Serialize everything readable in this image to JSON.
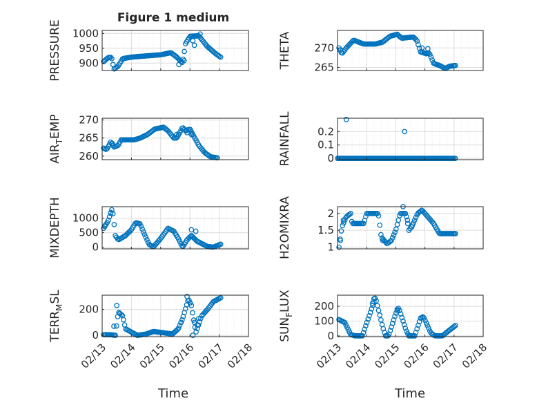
{
  "figure": {
    "title": "Figure 1 medium",
    "xlabel": "Time"
  },
  "x_ticks": [
    "02/13",
    "02/14",
    "02/15",
    "02/16",
    "02/17",
    "02/18"
  ],
  "colors": {
    "marker": "#0072BD",
    "axis": "#262626",
    "grid": "#dcdcdc",
    "minor_grid": "#ececec"
  },
  "chart_data": [
    {
      "type": "scatter",
      "id": "pressure",
      "ylabel": "PRESSURE",
      "ylabel_sub": "",
      "ylim": [
        875,
        1010
      ],
      "yticks": [
        900,
        950,
        1000
      ],
      "ytick_labels": [
        "900",
        "950",
        "1000"
      ],
      "x_range_days": [
        0,
        5
      ],
      "anchors": [
        [
          0.05,
          905
        ],
        [
          0.2,
          918
        ],
        [
          0.32,
          920
        ],
        [
          0.4,
          880
        ],
        [
          0.55,
          890
        ],
        [
          0.7,
          915
        ],
        [
          1.0,
          920
        ],
        [
          1.6,
          925
        ],
        [
          2.0,
          928
        ],
        [
          2.35,
          935
        ],
        [
          2.55,
          920
        ],
        [
          2.75,
          900
        ],
        [
          2.85,
          965
        ],
        [
          3.0,
          990
        ],
        [
          3.3,
          992
        ],
        [
          3.6,
          955
        ],
        [
          3.9,
          930
        ],
        [
          4.05,
          920
        ]
      ],
      "extra": [
        [
          2.62,
          895
        ],
        [
          2.7,
          905
        ],
        [
          2.8,
          908
        ],
        [
          3.1,
          975
        ],
        [
          3.15,
          960
        ],
        [
          3.35,
          998
        ]
      ]
    },
    {
      "type": "scatter",
      "id": "theta",
      "ylabel": "THETA",
      "ylabel_sub": "",
      "ylim": [
        264.2,
        274.5
      ],
      "yticks": [
        265,
        270
      ],
      "ytick_labels": [
        "265",
        "270"
      ],
      "x_range_days": [
        0,
        5
      ],
      "anchors": [
        [
          0.05,
          270
        ],
        [
          0.15,
          268.5
        ],
        [
          0.3,
          270
        ],
        [
          0.55,
          272
        ],
        [
          0.9,
          271
        ],
        [
          1.3,
          271
        ],
        [
          1.55,
          271.5
        ],
        [
          1.8,
          273
        ],
        [
          2.05,
          273.5
        ],
        [
          2.2,
          272.5
        ],
        [
          2.6,
          272.8
        ],
        [
          2.72,
          272
        ],
        [
          2.85,
          269
        ],
        [
          3.05,
          268.5
        ],
        [
          3.15,
          268.7
        ],
        [
          3.3,
          266
        ],
        [
          3.5,
          265.5
        ],
        [
          3.7,
          264.7
        ],
        [
          3.85,
          265.3
        ],
        [
          4.05,
          265.5
        ]
      ],
      "extra": [
        [
          0.1,
          269.5
        ],
        [
          2.9,
          270
        ],
        [
          3.1,
          269.8
        ]
      ]
    },
    {
      "type": "scatter",
      "id": "air_temp",
      "ylabel": "AIR",
      "ylabel_sub": "T",
      "ylabel_tail": "EMP",
      "ylim": [
        259,
        270.5
      ],
      "yticks": [
        260,
        265,
        270
      ],
      "ytick_labels": [
        "260",
        "265",
        "270"
      ],
      "x_range_days": [
        0,
        5
      ],
      "anchors": [
        [
          0.05,
          262.2
        ],
        [
          0.15,
          261.8
        ],
        [
          0.3,
          264
        ],
        [
          0.4,
          262.5
        ],
        [
          0.55,
          263
        ],
        [
          0.65,
          264.5
        ],
        [
          1.1,
          264.5
        ],
        [
          1.3,
          265
        ],
        [
          1.55,
          266
        ],
        [
          1.8,
          267.5
        ],
        [
          2.1,
          268
        ],
        [
          2.25,
          267
        ],
        [
          2.45,
          265
        ],
        [
          2.55,
          265
        ],
        [
          2.75,
          268
        ],
        [
          2.85,
          267
        ],
        [
          3.0,
          267.5
        ],
        [
          3.3,
          263
        ],
        [
          3.5,
          261
        ],
        [
          3.7,
          259.8
        ],
        [
          3.95,
          259.5
        ]
      ],
      "extra": [
        [
          0.35,
          263.5
        ],
        [
          2.9,
          266.5
        ],
        [
          2.55,
          266
        ],
        [
          3.05,
          266
        ]
      ]
    },
    {
      "type": "scatter",
      "id": "rainfall",
      "ylabel": "RAINFALL",
      "ylabel_sub": "",
      "ylim": [
        -0.01,
        0.3
      ],
      "yticks": [
        0,
        0.1,
        0.2
      ],
      "ytick_labels": [
        "0",
        "0.1",
        "0.2"
      ],
      "x_range_days": [
        0,
        5
      ],
      "anchors": [
        [
          0,
          0
        ],
        [
          4.05,
          0
        ]
      ],
      "extra": [
        [
          0.3,
          0.29
        ],
        [
          2.3,
          0.2
        ]
      ]
    },
    {
      "type": "scatter",
      "id": "mixdepth",
      "ylabel": "MIXDEPTH",
      "ylabel_sub": "",
      "ylim": [
        -60,
        1400
      ],
      "yticks": [
        0,
        500,
        1000
      ],
      "ytick_labels": [
        "0",
        "500",
        "1000"
      ],
      "x_range_days": [
        0,
        5
      ],
      "anchors": [
        [
          0.05,
          650
        ],
        [
          0.2,
          900
        ],
        [
          0.35,
          1350
        ],
        [
          0.45,
          400
        ],
        [
          0.55,
          250
        ],
        [
          0.8,
          400
        ],
        [
          1.0,
          600
        ],
        [
          1.15,
          850
        ],
        [
          1.3,
          800
        ],
        [
          1.4,
          550
        ],
        [
          1.6,
          100
        ],
        [
          1.75,
          0
        ],
        [
          2.0,
          300
        ],
        [
          2.25,
          650
        ],
        [
          2.45,
          550
        ],
        [
          2.6,
          300
        ],
        [
          2.75,
          0
        ],
        [
          2.9,
          250
        ],
        [
          3.05,
          400
        ],
        [
          3.25,
          200
        ],
        [
          3.6,
          20
        ],
        [
          3.8,
          0
        ],
        [
          4.05,
          100
        ]
      ],
      "extra": [
        [
          0.1,
          750
        ],
        [
          0.3,
          1200
        ],
        [
          3.05,
          600
        ],
        [
          3.2,
          550
        ]
      ]
    },
    {
      "type": "scatter",
      "id": "h2omixra",
      "ylabel": "H2OMIXRA",
      "ylabel_sub": "",
      "ylim": [
        0.95,
        2.2
      ],
      "yticks": [
        1,
        1.5,
        2
      ],
      "ytick_labels": [
        "1",
        "1.5",
        "2"
      ],
      "x_range_days": [
        0,
        5
      ],
      "anchors": [
        [
          0.05,
          1.0
        ],
        [
          0.15,
          1.6
        ],
        [
          0.3,
          1.9
        ],
        [
          0.45,
          2.0
        ],
        [
          0.5,
          1.7
        ],
        [
          0.9,
          1.7
        ],
        [
          1.0,
          2.0
        ],
        [
          1.4,
          2.0
        ],
        [
          1.5,
          1.3
        ],
        [
          1.7,
          1.1
        ],
        [
          1.85,
          1.2
        ],
        [
          2.0,
          1.5
        ],
        [
          2.15,
          2.0
        ],
        [
          2.35,
          2.0
        ],
        [
          2.45,
          1.5
        ],
        [
          2.6,
          1.7
        ],
        [
          2.75,
          2.0
        ],
        [
          2.9,
          2.1
        ],
        [
          3.1,
          1.9
        ],
        [
          3.3,
          1.7
        ],
        [
          3.5,
          1.4
        ],
        [
          4.05,
          1.4
        ]
      ],
      "extra": [
        [
          0.1,
          1.2
        ],
        [
          0.2,
          1.8
        ],
        [
          2.25,
          2.2
        ],
        [
          2.4,
          1.8
        ],
        [
          2.55,
          1.6
        ],
        [
          1.55,
          1.2
        ]
      ]
    },
    {
      "type": "scatter",
      "id": "terr_msl",
      "ylabel": "TERR",
      "ylabel_sub": "M",
      "ylabel_tail": "SL",
      "ylim": [
        -10,
        310
      ],
      "yticks": [
        0,
        200
      ],
      "ytick_labels": [
        "0",
        "200"
      ],
      "x_range_days": [
        0,
        5
      ],
      "anchors": [
        [
          0.05,
          5
        ],
        [
          0.3,
          5
        ],
        [
          0.45,
          0
        ],
        [
          0.55,
          180
        ],
        [
          0.7,
          150
        ],
        [
          0.8,
          50
        ],
        [
          1.2,
          0
        ],
        [
          1.5,
          10
        ],
        [
          1.75,
          30
        ],
        [
          2.1,
          20
        ],
        [
          2.4,
          10
        ],
        [
          2.6,
          50
        ],
        [
          2.75,
          130
        ],
        [
          2.95,
          280
        ],
        [
          3.05,
          230
        ],
        [
          3.2,
          20
        ],
        [
          3.4,
          150
        ],
        [
          3.6,
          200
        ],
        [
          3.8,
          260
        ],
        [
          4.05,
          290
        ]
      ],
      "extra": [
        [
          0.5,
          230
        ],
        [
          0.6,
          170
        ],
        [
          0.4,
          70
        ],
        [
          2.9,
          300
        ],
        [
          3.0,
          250
        ],
        [
          3.15,
          100
        ],
        [
          3.25,
          80
        ],
        [
          3.3,
          130
        ],
        [
          3.1,
          0
        ],
        [
          3.9,
          270
        ],
        [
          2.7,
          100
        ]
      ]
    },
    {
      "type": "scatter",
      "id": "sun_flux",
      "ylabel": "SUN",
      "ylabel_sub": "F",
      "ylabel_tail": "LUX",
      "ylim": [
        -5,
        275
      ],
      "yticks": [
        0,
        100,
        200
      ],
      "ytick_labels": [
        "0",
        "100",
        "200"
      ],
      "x_range_days": [
        0,
        5
      ],
      "anchors": [
        [
          0.05,
          110
        ],
        [
          0.25,
          90
        ],
        [
          0.45,
          10
        ],
        [
          0.6,
          0
        ],
        [
          0.85,
          0
        ],
        [
          1.15,
          170
        ],
        [
          1.3,
          260
        ],
        [
          1.55,
          60
        ],
        [
          1.65,
          0
        ],
        [
          1.75,
          0
        ],
        [
          2.0,
          150
        ],
        [
          2.1,
          190
        ],
        [
          2.35,
          40
        ],
        [
          2.45,
          0
        ],
        [
          2.65,
          0
        ],
        [
          2.85,
          120
        ],
        [
          2.95,
          130
        ],
        [
          3.2,
          20
        ],
        [
          3.35,
          0
        ],
        [
          3.6,
          0
        ],
        [
          3.85,
          40
        ],
        [
          4.05,
          70
        ]
      ],
      "extra": [
        [
          1.2,
          220
        ],
        [
          1.25,
          250
        ],
        [
          2.05,
          180
        ]
      ]
    }
  ]
}
